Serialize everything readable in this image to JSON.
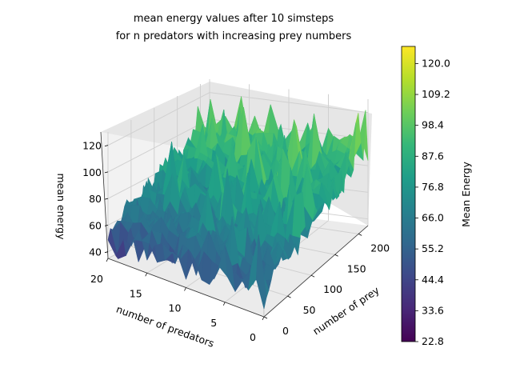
{
  "chart_data": {
    "type": "surface3d",
    "title_lines": [
      "mean energy values after 10 simsteps",
      "for n predators with increasing prey numbers"
    ],
    "xlabel": "number of predators",
    "ylabel": "number of prey",
    "zlabel": "mean energy",
    "x_ticks": [
      "0",
      "5",
      "10",
      "15",
      "20"
    ],
    "y_ticks": [
      "0",
      "50",
      "100",
      "150",
      "200"
    ],
    "z_ticks": [
      "40",
      "60",
      "80",
      "100",
      "120"
    ],
    "xlim": [
      0,
      20
    ],
    "ylim": [
      0,
      220
    ],
    "zlim": [
      35,
      130
    ],
    "colorbar": {
      "label": "Mean Energy",
      "ticks": [
        "22.8",
        "33.6",
        "44.4",
        "55.2",
        "66.0",
        "76.8",
        "87.6",
        "98.4",
        "109.2",
        "120.0"
      ],
      "range": [
        22.8,
        126.0
      ]
    },
    "colormap": [
      "#440154",
      "#482878",
      "#3e4989",
      "#31688e",
      "#26828e",
      "#1f9e89",
      "#35b779",
      "#6ece58",
      "#b5de2b",
      "#fde725"
    ],
    "surface_trend": "mean energy increases with number of prey (from about 50 at low prey to about 90-100 at 200 prey), with strong noise and peaks up to about 126"
  }
}
